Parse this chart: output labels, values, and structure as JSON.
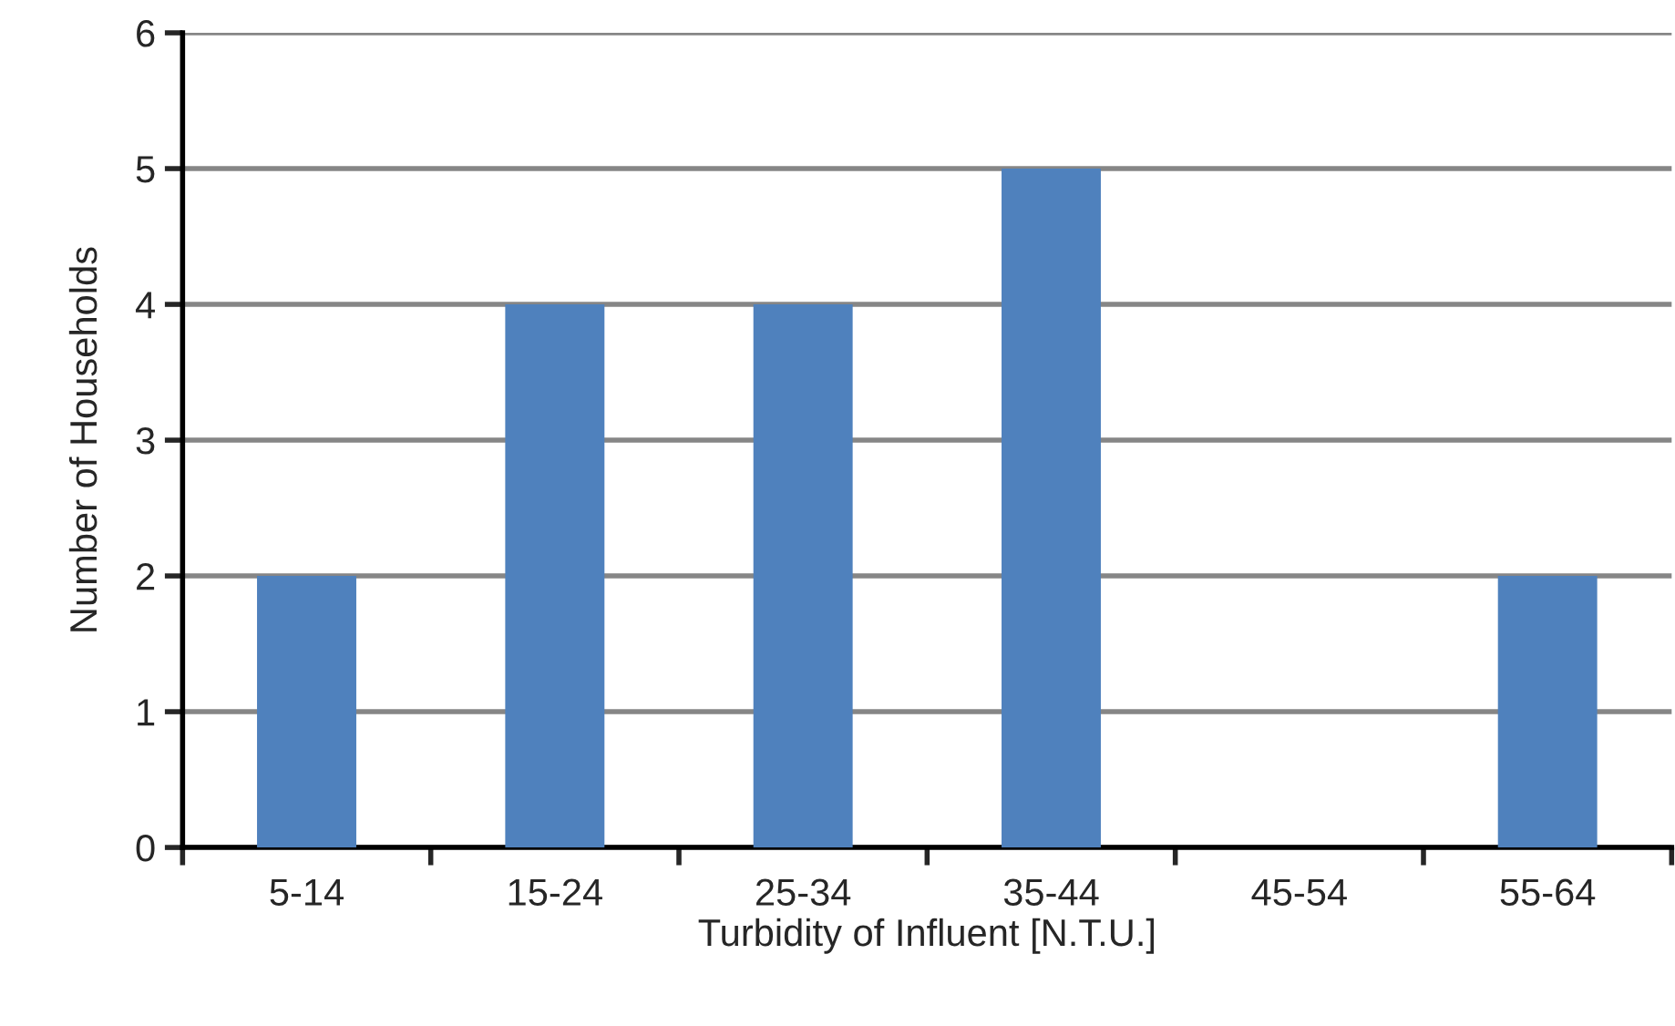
{
  "chart_data": {
    "type": "bar",
    "xlabel": "Turbidity of Influent [N.T.U.]",
    "ylabel": "Number of Households",
    "categories": [
      "5-14",
      "15-24",
      "25-34",
      "35-44",
      "45-54",
      "55-64"
    ],
    "values": [
      2,
      4,
      4,
      5,
      0,
      2
    ],
    "color": "#4f81bd",
    "ylim": [
      0,
      6
    ],
    "yticks": [
      0,
      1,
      2,
      3,
      4,
      5,
      6
    ],
    "grid": "y",
    "legend": false
  }
}
